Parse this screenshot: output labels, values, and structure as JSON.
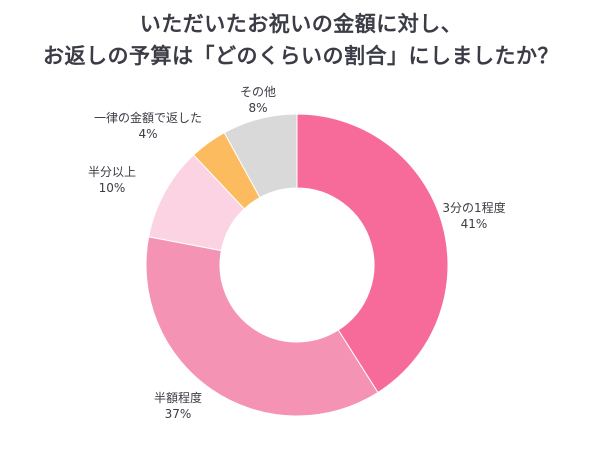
{
  "chart_data": {
    "type": "pie",
    "title_line1": "いただいたお祝いの金額に対し、",
    "title_line2": "お返しの予算は「どのくらいの割合」にしましたか？",
    "slices": [
      {
        "label": "3分の1程度",
        "value": 41,
        "display": "41%",
        "color": "#f76b9a"
      },
      {
        "label": "半額程度",
        "value": 37,
        "display": "37%",
        "color": "#f593b4"
      },
      {
        "label": "半分以上",
        "value": 10,
        "display": "10%",
        "color": "#fcd3e2"
      },
      {
        "label": "一律の金額で返した",
        "value": 4,
        "display": "4%",
        "color": "#fbbb5e"
      },
      {
        "label": "その他",
        "value": 8,
        "display": "8%",
        "color": "#d9d9d9"
      }
    ],
    "donut": true,
    "legend": "none",
    "start_angle": "top, clockwise"
  }
}
